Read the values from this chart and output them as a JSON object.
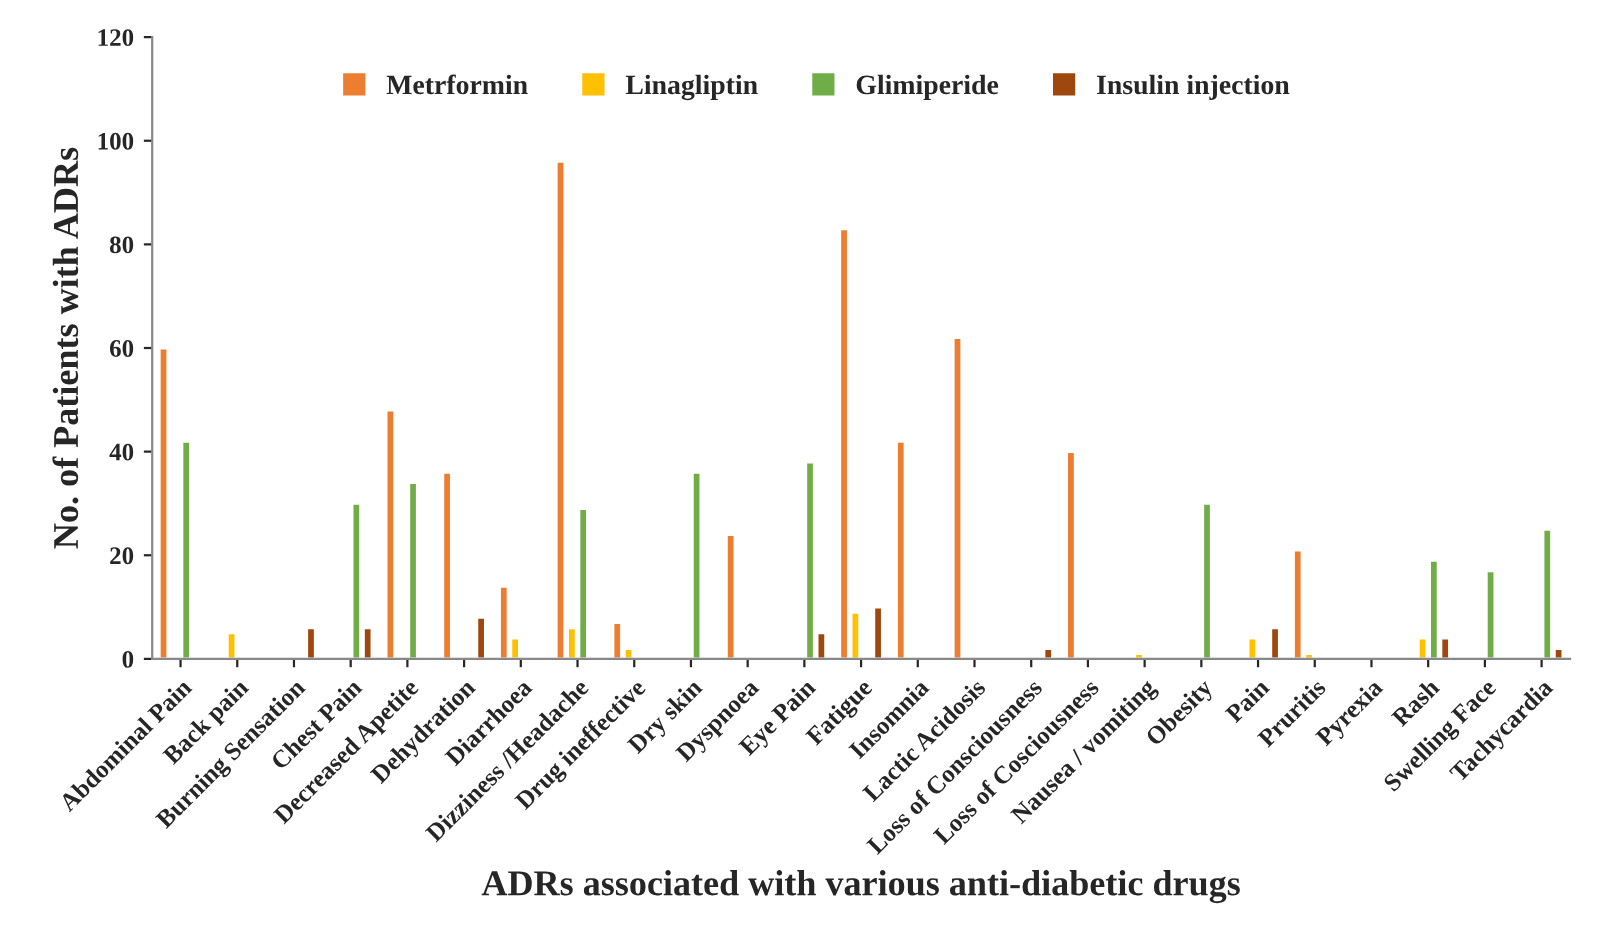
{
  "chart_data": {
    "type": "bar",
    "xlabel": "ADRs associated with various anti-diabetic drugs",
    "ylabel": "No. of Patients with ADRs",
    "categories": [
      "Abdominal Pain",
      "Back pain",
      "Burning Sensation",
      "Chest Pain",
      "Decreased Apetite",
      "Dehydration",
      "Diarrhoea",
      "Dizziness /Headache",
      "Drug ineffective",
      "Dry skin",
      "Dyspnoea",
      "Eye Pain",
      "Fatigue",
      "Insomnia",
      "Lactic Acidosis",
      "Loss of Consciousness",
      "Loss of Cosciousness",
      "Nausea / vomiting",
      "Obesity",
      "Pain",
      "Pruritis",
      "Pyrexia",
      "Rash",
      "Swelling Face",
      "Tachycardia"
    ],
    "series": [
      {
        "name": "Metrformin",
        "color": "#ed7d31",
        "values": [
          60,
          null,
          null,
          null,
          48,
          36,
          14,
          96,
          7,
          null,
          24,
          null,
          83,
          42,
          62,
          null,
          40,
          null,
          null,
          null,
          21,
          null,
          null,
          null,
          null
        ]
      },
      {
        "name": "Linagliptin",
        "color": "#ffc000",
        "values": [
          null,
          5,
          null,
          null,
          null,
          null,
          4,
          6,
          2,
          null,
          null,
          null,
          9,
          null,
          null,
          null,
          null,
          1,
          null,
          4,
          1,
          null,
          4,
          null,
          null
        ]
      },
      {
        "name": "Glimiperide",
        "color": "#70ad47",
        "values": [
          42,
          null,
          null,
          30,
          34,
          null,
          null,
          29,
          null,
          36,
          null,
          38,
          null,
          null,
          null,
          null,
          null,
          null,
          30,
          null,
          null,
          null,
          19,
          17,
          25
        ]
      },
      {
        "name": "Insulin injection",
        "color": "#9e480e",
        "values": [
          null,
          null,
          6,
          6,
          null,
          8,
          null,
          null,
          null,
          null,
          null,
          5,
          10,
          null,
          null,
          2,
          null,
          null,
          null,
          6,
          null,
          null,
          4,
          null,
          2
        ]
      }
    ],
    "ylim": [
      0,
      120
    ],
    "yticks": [
      0,
      20,
      40,
      60,
      80,
      100,
      120
    ],
    "grid": false,
    "legend": "top right"
  }
}
